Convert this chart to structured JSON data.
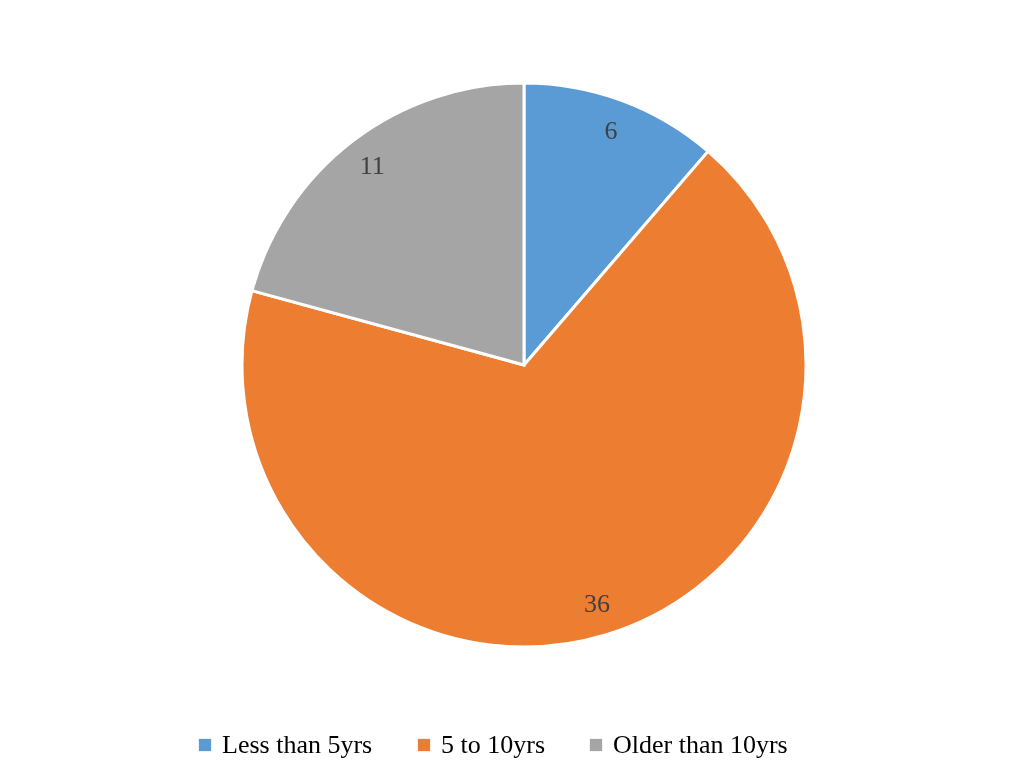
{
  "chart_data": {
    "type": "pie",
    "categories": [
      "Less than 5yrs",
      "5 to 10yrs",
      "Older than 10yrs"
    ],
    "values": [
      6,
      36,
      11
    ],
    "colors": [
      "#5b9bd5",
      "#ed7d31",
      "#a5a5a5"
    ],
    "data_labels": true,
    "legend": "bottom"
  }
}
